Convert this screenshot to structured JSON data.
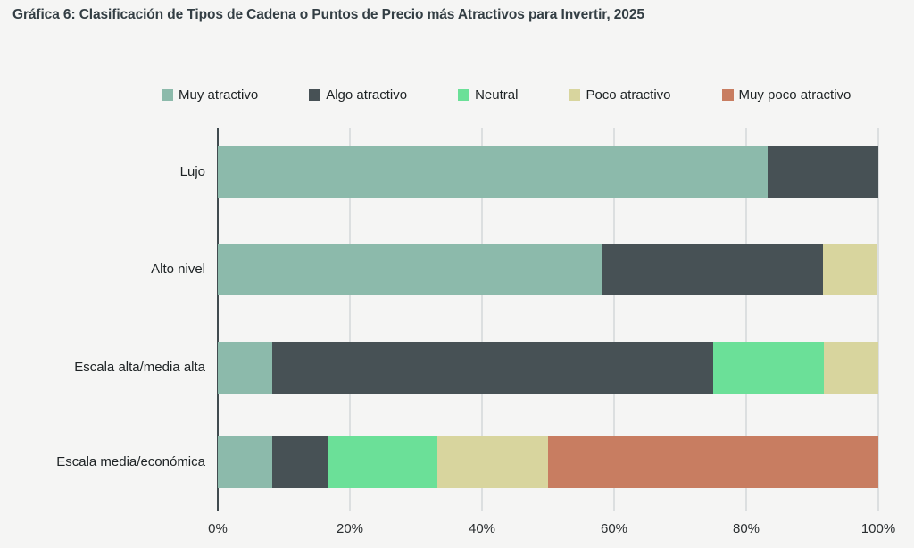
{
  "title": "Gráfica 6: Clasificación de Tipos de Cadena o Puntos de Precio más Atractivos para Invertir, 2025",
  "colors": {
    "background": "#f5f5f4",
    "gridline": "#dcdfe0",
    "axis_line": "#414b4f",
    "title_text": "#333e44",
    "label_text": "#1d2224"
  },
  "chart_data": {
    "type": "bar",
    "orientation": "horizontal",
    "stacked": true,
    "title": "Gráfica 6: Clasificación de Tipos de Cadena o Puntos de Precio más Atractivos para Invertir, 2025",
    "categories": [
      "Lujo",
      "Alto nivel",
      "Escala alta/media alta",
      "Escala media/económica"
    ],
    "series": [
      {
        "name": "Muy atractivo",
        "color": "#8cbaab",
        "values": [
          83.3,
          58.3,
          8.3,
          8.3
        ]
      },
      {
        "name": "Algo atractivo",
        "color": "#475155",
        "values": [
          16.7,
          33.3,
          66.7,
          8.3
        ]
      },
      {
        "name": "Neutral",
        "color": "#6be098",
        "values": [
          0,
          0,
          16.7,
          16.7
        ]
      },
      {
        "name": "Poco atractivo",
        "color": "#d8d59e",
        "values": [
          0,
          8.3,
          8.3,
          16.7
        ]
      },
      {
        "name": "Muy poco atractivo",
        "color": "#c87d61",
        "values": [
          0,
          0,
          0,
          50
        ]
      }
    ],
    "x_ticks": [
      "0%",
      "20%",
      "40%",
      "60%",
      "80%",
      "100%"
    ],
    "xlim": [
      0,
      100
    ],
    "xlabel": "",
    "ylabel": "",
    "legend_position": "top",
    "grid": "vertical"
  }
}
